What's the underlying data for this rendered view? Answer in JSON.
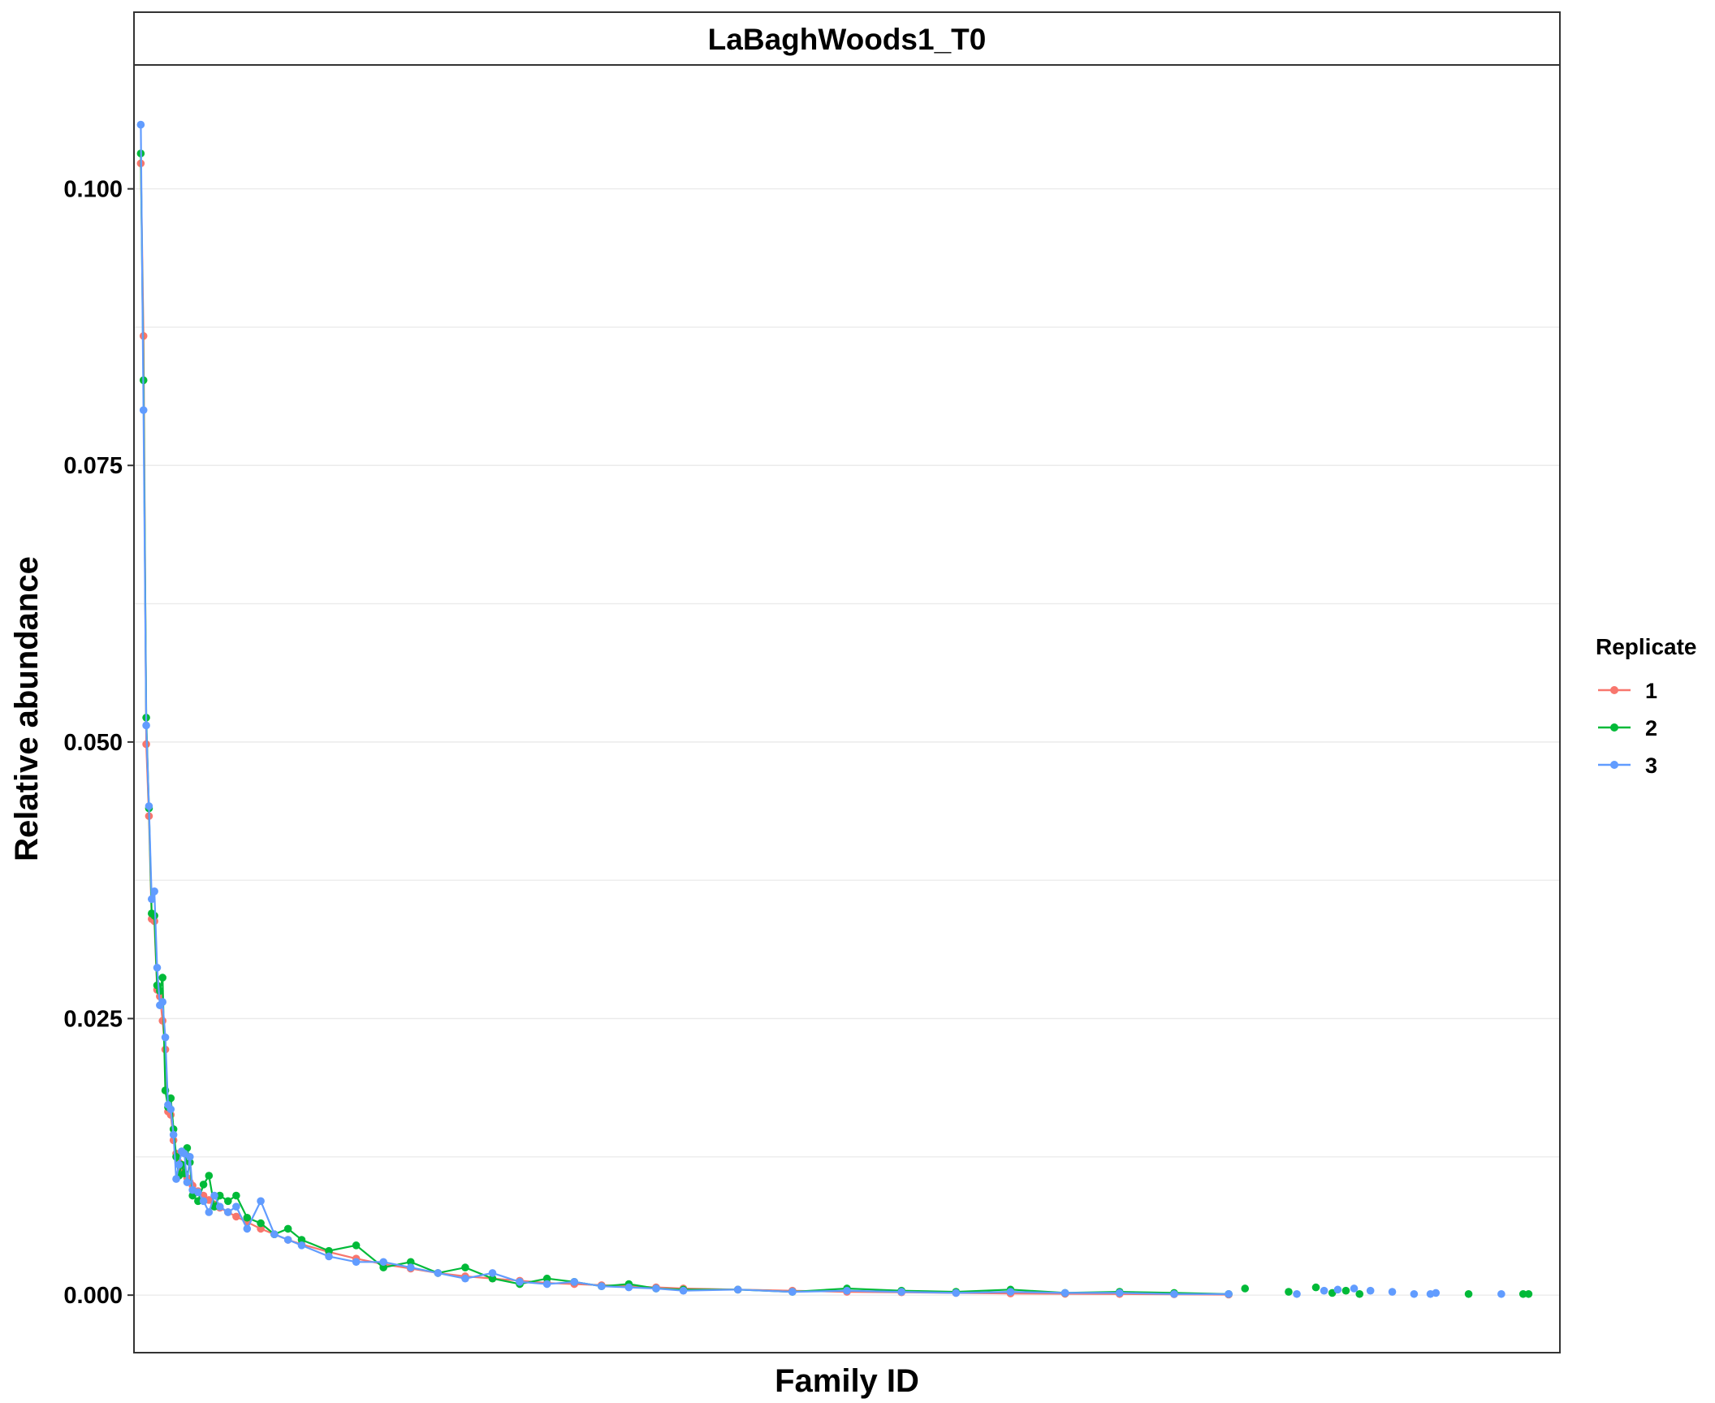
{
  "chart_data": {
    "type": "line",
    "title": "LaBaghWoods1_T0",
    "xlabel": "Family ID",
    "ylabel": "Relative abundance",
    "ylim": [
      -0.0052,
      0.1112
    ],
    "yticks": [
      0.0,
      0.025,
      0.05,
      0.075,
      0.1
    ],
    "ytick_labels": [
      "0.000",
      "0.025",
      "0.050",
      "0.075",
      "0.100"
    ],
    "xlim": [
      0,
      520
    ],
    "grid": true,
    "legend": {
      "title": "Replicate",
      "placement": "right"
    },
    "series": [
      {
        "name": "1",
        "color": "#F8766D",
        "points": [
          [
            1,
            0.1023
          ],
          [
            2,
            0.0867
          ],
          [
            3,
            0.0498
          ],
          [
            4,
            0.0433
          ],
          [
            5,
            0.034
          ],
          [
            6,
            0.0338
          ],
          [
            7,
            0.0276
          ],
          [
            8,
            0.027
          ],
          [
            9,
            0.0248
          ],
          [
            10,
            0.0222
          ],
          [
            11,
            0.0166
          ],
          [
            12,
            0.0163
          ],
          [
            13,
            0.014
          ],
          [
            14,
            0.0128
          ],
          [
            15,
            0.012
          ],
          [
            16,
            0.0115
          ],
          [
            17,
            0.011
          ],
          [
            18,
            0.0106
          ],
          [
            19,
            0.0102
          ],
          [
            20,
            0.0099
          ],
          [
            22,
            0.0094
          ],
          [
            24,
            0.009
          ],
          [
            26,
            0.0086
          ],
          [
            28,
            0.0082
          ],
          [
            30,
            0.0079
          ],
          [
            33,
            0.0075
          ],
          [
            36,
            0.0071
          ],
          [
            40,
            0.0066
          ],
          [
            45,
            0.006
          ],
          [
            50,
            0.0055
          ],
          [
            55,
            0.005
          ],
          [
            60,
            0.0046
          ],
          [
            70,
            0.0039
          ],
          [
            80,
            0.0033
          ],
          [
            90,
            0.0028
          ],
          [
            100,
            0.0024
          ],
          [
            110,
            0.002
          ],
          [
            120,
            0.0017
          ],
          [
            130,
            0.0015
          ],
          [
            140,
            0.0013
          ],
          [
            150,
            0.0011
          ],
          [
            160,
            0.001
          ],
          [
            170,
            0.0009
          ],
          [
            180,
            0.0008
          ],
          [
            190,
            0.0007
          ],
          [
            200,
            0.0006
          ],
          [
            220,
            0.0005
          ],
          [
            240,
            0.0004
          ],
          [
            260,
            0.0003
          ],
          [
            280,
            0.00025
          ],
          [
            300,
            0.0002
          ],
          [
            320,
            0.00015
          ],
          [
            340,
            0.00012
          ],
          [
            360,
            0.0001
          ],
          [
            380,
            8e-05
          ],
          [
            400,
            5e-05
          ]
        ]
      },
      {
        "name": "2",
        "color": "#00BA38",
        "points": [
          [
            1,
            0.1032
          ],
          [
            2,
            0.0827
          ],
          [
            3,
            0.0522
          ],
          [
            4,
            0.044
          ],
          [
            5,
            0.0345
          ],
          [
            6,
            0.0343
          ],
          [
            7,
            0.028
          ],
          [
            8,
            0.0275
          ],
          [
            9,
            0.0287
          ],
          [
            10,
            0.0185
          ],
          [
            11,
            0.017
          ],
          [
            12,
            0.0178
          ],
          [
            13,
            0.015
          ],
          [
            14,
            0.0125
          ],
          [
            15,
            0.0108
          ],
          [
            16,
            0.0118
          ],
          [
            17,
            0.011
          ],
          [
            18,
            0.0133
          ],
          [
            19,
            0.012
          ],
          [
            20,
            0.009
          ],
          [
            22,
            0.0085
          ],
          [
            24,
            0.01
          ],
          [
            26,
            0.0108
          ],
          [
            28,
            0.008
          ],
          [
            30,
            0.009
          ],
          [
            33,
            0.0085
          ],
          [
            36,
            0.009
          ],
          [
            40,
            0.007
          ],
          [
            45,
            0.0065
          ],
          [
            50,
            0.0055
          ],
          [
            55,
            0.006
          ],
          [
            60,
            0.005
          ],
          [
            70,
            0.004
          ],
          [
            80,
            0.0045
          ],
          [
            90,
            0.0025
          ],
          [
            100,
            0.003
          ],
          [
            110,
            0.002
          ],
          [
            120,
            0.0025
          ],
          [
            130,
            0.0015
          ],
          [
            140,
            0.001
          ],
          [
            150,
            0.0015
          ],
          [
            160,
            0.0012
          ],
          [
            170,
            0.0008
          ],
          [
            180,
            0.001
          ],
          [
            190,
            0.0006
          ],
          [
            200,
            0.0005
          ],
          [
            220,
            0.0005
          ],
          [
            240,
            0.0003
          ],
          [
            260,
            0.0006
          ],
          [
            280,
            0.0004
          ],
          [
            300,
            0.0003
          ],
          [
            320,
            0.0005
          ],
          [
            340,
            0.0002
          ],
          [
            360,
            0.0003
          ],
          [
            380,
            0.0002
          ],
          [
            400,
            0.0001
          ]
        ]
      },
      {
        "name": "3",
        "color": "#619CFF",
        "points": [
          [
            1,
            0.1058
          ],
          [
            2,
            0.08
          ],
          [
            3,
            0.0515
          ],
          [
            4,
            0.0442
          ],
          [
            5,
            0.0358
          ],
          [
            6,
            0.0365
          ],
          [
            7,
            0.0296
          ],
          [
            8,
            0.0262
          ],
          [
            9,
            0.0265
          ],
          [
            10,
            0.0233
          ],
          [
            11,
            0.0172
          ],
          [
            12,
            0.0168
          ],
          [
            13,
            0.0145
          ],
          [
            14,
            0.0105
          ],
          [
            15,
            0.0118
          ],
          [
            16,
            0.013
          ],
          [
            17,
            0.0128
          ],
          [
            18,
            0.0102
          ],
          [
            19,
            0.0125
          ],
          [
            20,
            0.0095
          ],
          [
            22,
            0.0093
          ],
          [
            24,
            0.0085
          ],
          [
            26,
            0.0075
          ],
          [
            28,
            0.009
          ],
          [
            30,
            0.008
          ],
          [
            33,
            0.0075
          ],
          [
            36,
            0.008
          ],
          [
            40,
            0.006
          ],
          [
            45,
            0.0085
          ],
          [
            50,
            0.0055
          ],
          [
            55,
            0.005
          ],
          [
            60,
            0.0045
          ],
          [
            70,
            0.0035
          ],
          [
            80,
            0.003
          ],
          [
            90,
            0.003
          ],
          [
            100,
            0.0025
          ],
          [
            110,
            0.002
          ],
          [
            120,
            0.0015
          ],
          [
            130,
            0.002
          ],
          [
            140,
            0.0012
          ],
          [
            150,
            0.001
          ],
          [
            160,
            0.0012
          ],
          [
            170,
            0.0008
          ],
          [
            180,
            0.0007
          ],
          [
            190,
            0.0006
          ],
          [
            200,
            0.0004
          ],
          [
            220,
            0.0005
          ],
          [
            240,
            0.0003
          ],
          [
            260,
            0.0004
          ],
          [
            280,
            0.0003
          ],
          [
            300,
            0.0002
          ],
          [
            320,
            0.0003
          ],
          [
            340,
            0.0002
          ],
          [
            360,
            0.0002
          ],
          [
            380,
            0.0001
          ],
          [
            400,
            0.0001
          ]
        ]
      }
    ],
    "unconnected_points": [
      {
        "series": "2",
        "x": 406,
        "y": 0.0006
      },
      {
        "series": "2",
        "x": 422,
        "y": 0.0003
      },
      {
        "series": "3",
        "x": 425,
        "y": 0.0001
      },
      {
        "series": "2",
        "x": 432,
        "y": 0.0007
      },
      {
        "series": "3",
        "x": 435,
        "y": 0.0004
      },
      {
        "series": "2",
        "x": 438,
        "y": 0.0002
      },
      {
        "series": "3",
        "x": 440,
        "y": 0.0005
      },
      {
        "series": "2",
        "x": 443,
        "y": 0.0004
      },
      {
        "series": "3",
        "x": 446,
        "y": 0.0006
      },
      {
        "series": "2",
        "x": 448,
        "y": 0.0001
      },
      {
        "series": "3",
        "x": 452,
        "y": 0.0004
      },
      {
        "series": "3",
        "x": 460,
        "y": 0.0003
      },
      {
        "series": "3",
        "x": 468,
        "y": 0.0001
      },
      {
        "series": "3",
        "x": 474,
        "y": 0.0001
      },
      {
        "series": "3",
        "x": 476,
        "y": 0.0002
      },
      {
        "series": "2",
        "x": 488,
        "y": 0.0001
      },
      {
        "series": "3",
        "x": 500,
        "y": 0.0001
      },
      {
        "series": "2",
        "x": 508,
        "y": 0.0001
      },
      {
        "series": "2",
        "x": 510,
        "y": 0.0001
      }
    ]
  }
}
